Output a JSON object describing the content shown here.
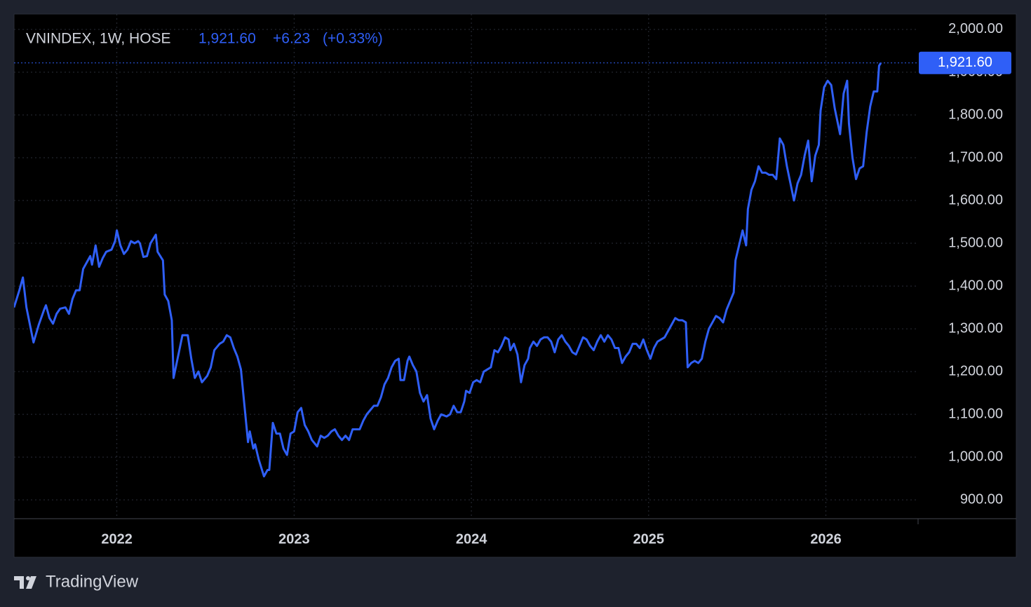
{
  "chart_data": {
    "type": "line",
    "title": "VNINDEX, 1W, HOSE",
    "last": {
      "value": 1921.6,
      "label": "1,921.60"
    },
    "change": {
      "value": 6.23,
      "label": "+6.23"
    },
    "change_percent": {
      "value": 0.33,
      "label": "(+0.33%)"
    },
    "brand": "TradingView",
    "color": "#2f5ff7",
    "grid": true,
    "xlim": [
      2021.42,
      2026.52
    ],
    "xticks": [
      2022,
      2023,
      2024,
      2025,
      2026
    ],
    "ylim": [
      856,
      2036
    ],
    "yticks": [
      {
        "value": 900,
        "label": "900.00"
      },
      {
        "value": 1000,
        "label": "1,000.00"
      },
      {
        "value": 1100,
        "label": "1,100.00"
      },
      {
        "value": 1200,
        "label": "1,200.00"
      },
      {
        "value": 1300,
        "label": "1,300.00"
      },
      {
        "value": 1400,
        "label": "1,400.00"
      },
      {
        "value": 1500,
        "label": "1,500.00"
      },
      {
        "value": 1600,
        "label": "1,600.00"
      },
      {
        "value": 1700,
        "label": "1,700.00"
      },
      {
        "value": 1800,
        "label": "1,800.00"
      },
      {
        "value": 1900,
        "label": "1,900.00"
      },
      {
        "value": 2000,
        "label": "2,000.00"
      }
    ],
    "x": [
      2021.42,
      2021.45,
      2021.47,
      2021.49,
      2021.53,
      2021.56,
      2021.59,
      2021.6,
      2021.62,
      2021.64,
      2021.66,
      2021.68,
      2021.71,
      2021.73,
      2021.75,
      2021.77,
      2021.79,
      2021.81,
      2021.83,
      2021.85,
      2021.86,
      2021.88,
      2021.9,
      2021.92,
      2021.94,
      2021.97,
      2021.99,
      2022.0,
      2022.02,
      2022.04,
      2022.06,
      2022.08,
      2022.1,
      2022.12,
      2022.13,
      2022.15,
      2022.17,
      2022.19,
      2022.22,
      2022.23,
      2022.26,
      2022.27,
      2022.29,
      2022.31,
      2022.32,
      2022.35,
      2022.37,
      2022.4,
      2022.42,
      2022.44,
      2022.46,
      2022.48,
      2022.51,
      2022.53,
      2022.55,
      2022.58,
      2022.6,
      2022.62,
      2022.64,
      2022.66,
      2022.68,
      2022.7,
      2022.72,
      2022.74,
      2022.75,
      2022.77,
      2022.78,
      2022.8,
      2022.83,
      2022.85,
      2022.86,
      2022.88,
      2022.9,
      2022.92,
      2022.94,
      2022.96,
      2022.98,
      2023.0,
      2023.02,
      2023.04,
      2023.06,
      2023.08,
      2023.1,
      2023.13,
      2023.15,
      2023.17,
      2023.19,
      2023.21,
      2023.23,
      2023.25,
      2023.27,
      2023.29,
      2023.31,
      2023.33,
      2023.35,
      2023.37,
      2023.39,
      2023.41,
      2023.43,
      2023.45,
      2023.47,
      2023.49,
      2023.51,
      2023.53,
      2023.55,
      2023.57,
      2023.59,
      2023.6,
      2023.62,
      2023.64,
      2023.65,
      2023.67,
      2023.69,
      2023.71,
      2023.73,
      2023.75,
      2023.77,
      2023.79,
      2023.81,
      2023.83,
      2023.86,
      2023.88,
      2023.9,
      2023.92,
      2023.94,
      2023.96,
      2023.97,
      2023.99,
      2024.01,
      2024.03,
      2024.05,
      2024.07,
      2024.09,
      2024.11,
      2024.13,
      2024.15,
      2024.17,
      2024.19,
      2024.21,
      2024.22,
      2024.24,
      2024.26,
      2024.28,
      2024.3,
      2024.32,
      2024.33,
      2024.35,
      2024.37,
      2024.39,
      2024.41,
      2024.43,
      2024.45,
      2024.47,
      2024.49,
      2024.51,
      2024.53,
      2024.55,
      2024.57,
      2024.59,
      2024.61,
      2024.63,
      2024.65,
      2024.67,
      2024.69,
      2024.71,
      2024.73,
      2024.75,
      2024.77,
      2024.79,
      2024.81,
      2024.83,
      2024.85,
      2024.87,
      2024.89,
      2024.91,
      2024.93,
      2024.95,
      2024.97,
      2024.99,
      2025.01,
      2025.03,
      2025.05,
      2025.07,
      2025.09,
      2025.11,
      2025.13,
      2025.15,
      2025.17,
      2025.19,
      2025.21,
      2025.22,
      2025.24,
      2025.26,
      2025.28,
      2025.3,
      2025.32,
      2025.34,
      2025.36,
      2025.38,
      2025.4,
      2025.42,
      2025.44,
      2025.46,
      2025.48,
      2025.49,
      2025.51,
      2025.53,
      2025.55,
      2025.56,
      2025.58,
      2025.6,
      2025.62,
      2025.64,
      2025.66,
      2025.68,
      2025.7,
      2025.72,
      2025.74,
      2025.76,
      2025.78,
      2025.8,
      2025.82,
      2025.84,
      2025.86,
      2025.88,
      2025.9,
      2025.92,
      2025.94,
      2025.96,
      2025.97,
      2025.99,
      2026.01,
      2026.03,
      2026.05,
      2026.08,
      2026.1,
      2026.12,
      2026.13,
      2026.15,
      2026.17,
      2026.19,
      2026.21,
      2026.23,
      2026.25,
      2026.27,
      2026.29,
      2026.3,
      2026.31
    ],
    "values": [
      1350,
      1390,
      1420,
      1350,
      1268,
      1310,
      1345,
      1355,
      1325,
      1312,
      1335,
      1347,
      1350,
      1335,
      1370,
      1390,
      1390,
      1440,
      1455,
      1470,
      1450,
      1495,
      1445,
      1465,
      1480,
      1485,
      1505,
      1530,
      1495,
      1475,
      1485,
      1505,
      1500,
      1505,
      1500,
      1468,
      1470,
      1500,
      1520,
      1480,
      1460,
      1380,
      1365,
      1320,
      1185,
      1245,
      1285,
      1285,
      1230,
      1185,
      1200,
      1175,
      1190,
      1210,
      1250,
      1265,
      1270,
      1285,
      1280,
      1255,
      1235,
      1205,
      1120,
      1035,
      1060,
      1020,
      1030,
      995,
      955,
      970,
      970,
      1080,
      1055,
      1055,
      1020,
      1005,
      1055,
      1060,
      1105,
      1115,
      1075,
      1060,
      1040,
      1025,
      1050,
      1045,
      1050,
      1060,
      1065,
      1050,
      1040,
      1050,
      1040,
      1065,
      1065,
      1065,
      1085,
      1100,
      1110,
      1120,
      1120,
      1140,
      1170,
      1185,
      1210,
      1225,
      1230,
      1180,
      1180,
      1225,
      1235,
      1215,
      1200,
      1150,
      1130,
      1145,
      1090,
      1065,
      1085,
      1100,
      1095,
      1100,
      1120,
      1105,
      1105,
      1130,
      1155,
      1150,
      1175,
      1180,
      1175,
      1200,
      1205,
      1210,
      1250,
      1245,
      1260,
      1280,
      1275,
      1250,
      1265,
      1240,
      1175,
      1215,
      1230,
      1255,
      1270,
      1260,
      1275,
      1280,
      1280,
      1270,
      1245,
      1275,
      1285,
      1270,
      1260,
      1245,
      1240,
      1260,
      1280,
      1275,
      1260,
      1250,
      1270,
      1285,
      1270,
      1285,
      1275,
      1255,
      1255,
      1220,
      1235,
      1245,
      1265,
      1265,
      1255,
      1275,
      1250,
      1230,
      1255,
      1270,
      1275,
      1280,
      1295,
      1310,
      1325,
      1320,
      1320,
      1315,
      1210,
      1220,
      1225,
      1220,
      1230,
      1270,
      1300,
      1315,
      1330,
      1325,
      1315,
      1345,
      1365,
      1385,
      1460,
      1495,
      1530,
      1495,
      1580,
      1625,
      1645,
      1680,
      1665,
      1665,
      1660,
      1660,
      1650,
      1745,
      1730,
      1680,
      1640,
      1600,
      1640,
      1660,
      1705,
      1740,
      1645,
      1705,
      1730,
      1810,
      1865,
      1880,
      1870,
      1815,
      1755,
      1850,
      1880,
      1780,
      1700,
      1650,
      1675,
      1680,
      1760,
      1820,
      1855,
      1855,
      1915,
      1921.6
    ]
  }
}
